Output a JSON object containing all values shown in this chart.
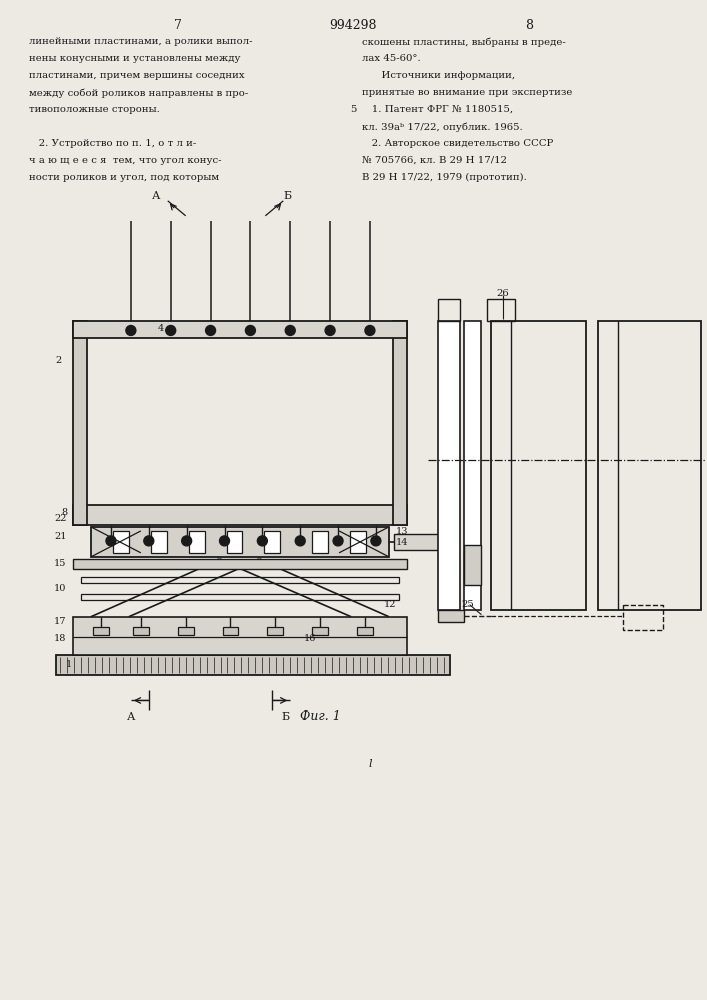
{
  "bg_color": "#edeae4",
  "lc": "#1a1a1a",
  "page_left": "7",
  "page_center": "994298",
  "page_right": "8",
  "left_col": [
    "линейными пластинами, а ролики выпол-",
    "нены конусными и установлены между",
    "пластинами, причем вершины соседних",
    "между собой роликов направлены в про-",
    "тивоположные стороны.",
    "",
    "   2. Устройство по п. 1, о т л и-",
    "ч а ю щ е е с я  тем, что угол конус-",
    "ности роликов и угол, под которым"
  ],
  "right_col": [
    "скошены пластины, выбраны в преде-",
    "лах 45-60°.",
    "      Источники информации,",
    "принятые во внимание при экспертизе",
    "   1. Патент ФРГ № 1180515,",
    "кл. 39аᵇ 17/22, опублик. 1965.",
    "   2. Авторское свидетельство СССР",
    "№ 705766, кл. В 29 Н 17/12",
    "В 29 Н 17/22, 1979 (прототип)."
  ],
  "line5_row": 4,
  "fig_caption": "Фиг. 1",
  "fig_l": "l"
}
